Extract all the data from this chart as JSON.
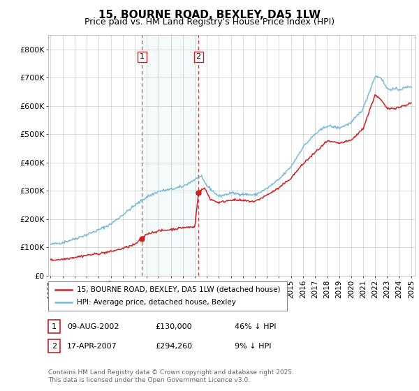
{
  "title": "15, BOURNE ROAD, BEXLEY, DA5 1LW",
  "subtitle": "Price paid vs. HM Land Registry's House Price Index (HPI)",
  "ylim": [
    0,
    850000
  ],
  "yticks": [
    0,
    100000,
    200000,
    300000,
    400000,
    500000,
    600000,
    700000,
    800000
  ],
  "ytick_labels": [
    "£0",
    "£100K",
    "£200K",
    "£300K",
    "£400K",
    "£500K",
    "£600K",
    "£700K",
    "£800K"
  ],
  "xlim_start": 1994.8,
  "xlim_end": 2025.3,
  "hpi_color": "#7ab8d9",
  "price_color": "#cc2222",
  "sale1_date": 2002.6,
  "sale1_price": 130000,
  "sale2_date": 2007.3,
  "sale2_price": 294260,
  "legend_line1": "15, BOURNE ROAD, BEXLEY, DA5 1LW (detached house)",
  "legend_line2": "HPI: Average price, detached house, Bexley",
  "table_row1": [
    "1",
    "09-AUG-2002",
    "£130,000",
    "46% ↓ HPI"
  ],
  "table_row2": [
    "2",
    "17-APR-2007",
    "£294,260",
    "9% ↓ HPI"
  ],
  "footnote": "Contains HM Land Registry data © Crown copyright and database right 2025.\nThis data is licensed under the Open Government Licence v3.0.",
  "background_color": "#ffffff",
  "grid_color": "#cccccc",
  "title_fontsize": 11,
  "subtitle_fontsize": 9,
  "hpi_knots": [
    [
      1995,
      110000
    ],
    [
      1996,
      117000
    ],
    [
      1997,
      130000
    ],
    [
      1998,
      145000
    ],
    [
      1999,
      162000
    ],
    [
      2000,
      182000
    ],
    [
      2001,
      215000
    ],
    [
      2002,
      248000
    ],
    [
      2003,
      278000
    ],
    [
      2004,
      298000
    ],
    [
      2005,
      305000
    ],
    [
      2006,
      315000
    ],
    [
      2007,
      340000
    ],
    [
      2007.5,
      350000
    ],
    [
      2008,
      318000
    ],
    [
      2009,
      280000
    ],
    [
      2010,
      292000
    ],
    [
      2011,
      288000
    ],
    [
      2012,
      285000
    ],
    [
      2013,
      308000
    ],
    [
      2014,
      340000
    ],
    [
      2015,
      385000
    ],
    [
      2016,
      455000
    ],
    [
      2017,
      500000
    ],
    [
      2018,
      530000
    ],
    [
      2019,
      522000
    ],
    [
      2020,
      540000
    ],
    [
      2021,
      590000
    ],
    [
      2022,
      705000
    ],
    [
      2022.5,
      700000
    ],
    [
      2023,
      660000
    ],
    [
      2024,
      658000
    ],
    [
      2025,
      670000
    ]
  ],
  "price_knots": [
    [
      1995,
      55000
    ],
    [
      1996,
      58000
    ],
    [
      1997,
      65000
    ],
    [
      1998,
      72000
    ],
    [
      1999,
      78000
    ],
    [
      2000,
      85000
    ],
    [
      2001,
      96000
    ],
    [
      2002.0,
      110000
    ],
    [
      2002.6,
      130000
    ],
    [
      2003,
      148000
    ],
    [
      2004,
      158000
    ],
    [
      2005,
      163000
    ],
    [
      2006,
      170000
    ],
    [
      2007.0,
      172000
    ],
    [
      2007.3,
      294260
    ],
    [
      2007.8,
      310000
    ],
    [
      2008.3,
      270000
    ],
    [
      2009,
      258000
    ],
    [
      2010,
      268000
    ],
    [
      2011,
      265000
    ],
    [
      2012,
      262000
    ],
    [
      2013,
      285000
    ],
    [
      2014,
      310000
    ],
    [
      2015,
      345000
    ],
    [
      2016,
      395000
    ],
    [
      2017,
      435000
    ],
    [
      2018,
      475000
    ],
    [
      2019,
      468000
    ],
    [
      2020,
      478000
    ],
    [
      2021,
      520000
    ],
    [
      2022,
      640000
    ],
    [
      2022.5,
      620000
    ],
    [
      2023,
      590000
    ],
    [
      2024,
      595000
    ],
    [
      2025,
      610000
    ]
  ]
}
